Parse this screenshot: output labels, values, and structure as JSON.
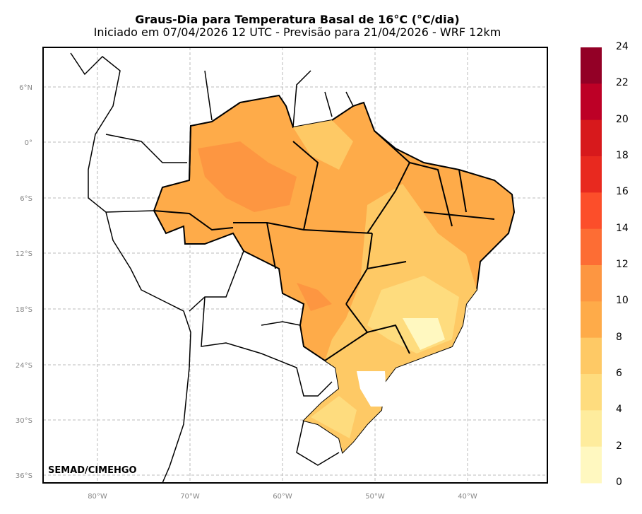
{
  "title": "Graus-Dia para Temperatura Basal de 16°C (°C/dia)",
  "subtitle": "Iniciado em 07/04/2026 12 UTC - Previsão para 21/04/2026 - WRF 12km",
  "credit": "SEMAD/CIMEHGO",
  "lat_ticks": [
    "6°N",
    "0°",
    "6°S",
    "12°S",
    "18°S",
    "24°S",
    "30°S",
    "36°S"
  ],
  "lon_ticks": [
    "80°W",
    "70°W",
    "60°W",
    "50°W",
    "40°W"
  ],
  "colorbar": {
    "labels": [
      "24",
      "22",
      "20",
      "18",
      "16",
      "14",
      "12",
      "10",
      "8",
      "6",
      "4",
      "2",
      "0"
    ],
    "colors": [
      "#930026",
      "#bd0026",
      "#d7191c",
      "#e8291f",
      "#fc4e2a",
      "#fd6d34",
      "#fd9641",
      "#feab49",
      "#fec965",
      "#fedc7e",
      "#feec9d",
      "#fff8c0"
    ]
  }
}
